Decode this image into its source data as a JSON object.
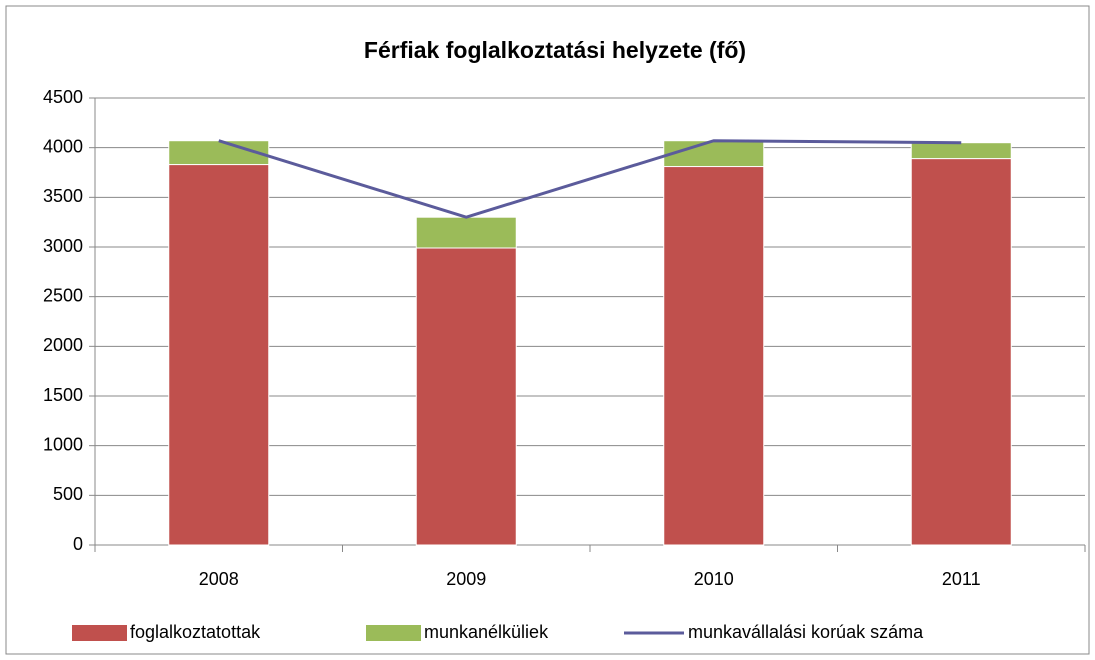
{
  "chart_data": {
    "type": "bar",
    "title": "Férfiak foglalkoztatási helyzete (fő)",
    "categories": [
      "2008",
      "2009",
      "2010",
      "2011"
    ],
    "series": [
      {
        "name": "foglalkoztatottak",
        "color": "#c0504d",
        "values": [
          3830,
          2990,
          3810,
          3890
        ]
      },
      {
        "name": "munkanélküliek",
        "color": "#9bbb59",
        "values": [
          240,
          310,
          260,
          160
        ]
      },
      {
        "name": "munkavállalási korúak száma",
        "color": "#5b5b9b",
        "type": "line",
        "values": [
          4070,
          3300,
          4070,
          4050
        ]
      }
    ],
    "stacked": true,
    "ylim": [
      0,
      4500
    ],
    "yticks": [
      0,
      500,
      1000,
      1500,
      2000,
      2500,
      3000,
      3500,
      4000,
      4500
    ],
    "grid": true,
    "legend": "bottom"
  }
}
